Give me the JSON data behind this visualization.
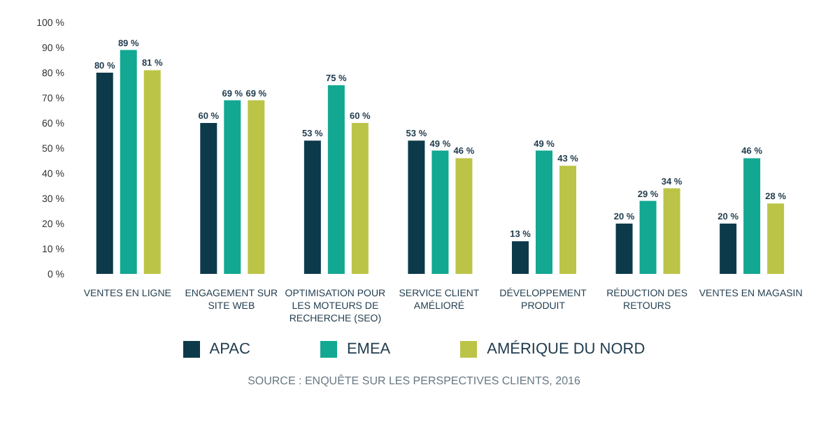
{
  "chart_data": {
    "type": "bar",
    "categories": [
      "VENTES EN LIGNE",
      "ENGAGEMENT SUR SITE WEB",
      "OPTIMISATION POUR LES MOTEURS DE RECHERCHE (SEO)",
      "SERVICE CLIENT AMÉLIORÉ",
      "DÉVELOPPEMENT PRODUIT",
      "RÉDUCTION DES RETOURS",
      "VENTES EN MAGASIN"
    ],
    "series": [
      {
        "name": "APAC",
        "color": "#0d3a4a",
        "values": [
          80,
          60,
          53,
          53,
          13,
          20,
          20
        ],
        "value_labels": [
          "80 %",
          "60 %",
          "53 %",
          "53 %",
          "13 %",
          "20 %",
          "20 %"
        ]
      },
      {
        "name": "EMEA",
        "color": "#12a892",
        "values": [
          89,
          69,
          75,
          49,
          49,
          29,
          46
        ],
        "value_labels": [
          "89 %",
          "69 %",
          "75 %",
          "49 %",
          "49 %",
          "29 %",
          "46 %"
        ]
      },
      {
        "name": "AMÉRIQUE DU NORD",
        "color": "#bcc447",
        "values": [
          81,
          69,
          60,
          46,
          43,
          34,
          28
        ],
        "value_labels": [
          "81 %",
          "69 %",
          "60 %",
          "46 %",
          "43 %",
          "34 %",
          "28 %"
        ]
      }
    ],
    "ylim": [
      0,
      100
    ],
    "yticks": [
      {
        "value": 0,
        "label": "0 %"
      },
      {
        "value": 10,
        "label": "10 %"
      },
      {
        "value": 20,
        "label": "20 %"
      },
      {
        "value": 30,
        "label": "30 %"
      },
      {
        "value": 40,
        "label": "40 %"
      },
      {
        "value": 50,
        "label": "50 %"
      },
      {
        "value": 60,
        "label": "60 %"
      },
      {
        "value": 70,
        "label": "70 %"
      },
      {
        "value": 80,
        "label": "80 %"
      },
      {
        "value": 90,
        "label": "90 %"
      },
      {
        "value": 100,
        "label": "100 %"
      }
    ],
    "grid": false,
    "legend": "bottom",
    "annotations": [
      "SOURCE : ENQUÊTE SUR LES PERSPECTIVES CLIENTS, 2016"
    ]
  }
}
